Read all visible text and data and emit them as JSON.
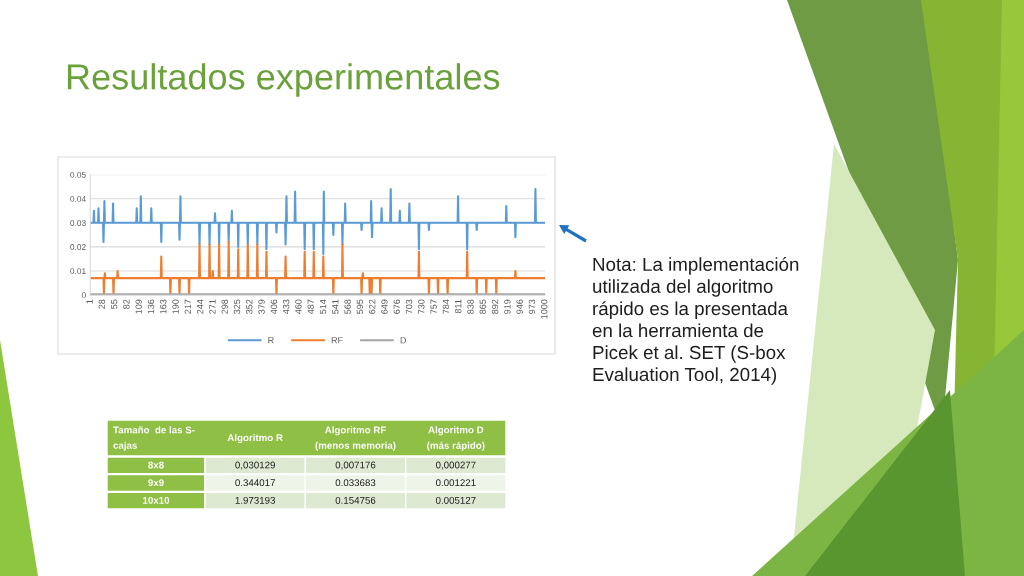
{
  "chart_data": [
    {
      "type": "line",
      "title": "Resultados experimentales",
      "xlim": [
        1,
        1000
      ],
      "xticks": [
        1,
        28,
        55,
        82,
        109,
        136,
        163,
        190,
        217,
        244,
        271,
        298,
        325,
        352,
        379,
        406,
        433,
        460,
        487,
        514,
        541,
        568,
        595,
        622,
        649,
        676,
        703,
        730,
        757,
        784,
        811,
        838,
        865,
        892,
        919,
        946,
        973,
        1000
      ],
      "ylim": [
        0,
        0.05
      ],
      "yticks": [
        0,
        0.01,
        0.02,
        0.03,
        0.04,
        0.05
      ],
      "grid": "y",
      "legend": "bottom",
      "series": [
        {
          "name": "R",
          "color": "#5b9bd5",
          "x": [
            1,
            8,
            9,
            10,
            18,
            19,
            20,
            29,
            30,
            31,
            32,
            33,
            50,
            51,
            52,
            102,
            103,
            104,
            111,
            112,
            113,
            134,
            135,
            136,
            156,
            157,
            158,
            196,
            197,
            198,
            199,
            200,
            240,
            241,
            242,
            262,
            263,
            264,
            274,
            275,
            276,
            283,
            284,
            285,
            304,
            305,
            306,
            311,
            312,
            313,
            325,
            326,
            327,
            346,
            347,
            348,
            367,
            368,
            369,
            387,
            388,
            389,
            409,
            410,
            411,
            429,
            430,
            431,
            432,
            433,
            450,
            451,
            452,
            471,
            472,
            473,
            491,
            492,
            493,
            512,
            513,
            514,
            515,
            534,
            535,
            536,
            554,
            555,
            556,
            560,
            561,
            562,
            596,
            597,
            598,
            617,
            618,
            619,
            620,
            621,
            640,
            641,
            642,
            660,
            661,
            662,
            680,
            681,
            682,
            701,
            702,
            703,
            722,
            723,
            724,
            744,
            745,
            746,
            808,
            809,
            810,
            828,
            829,
            830,
            849,
            850,
            851,
            914,
            915,
            916,
            934,
            935,
            936,
            978,
            979,
            980,
            1000
          ],
          "values": [
            0.03,
            0.03,
            0.035,
            0.03,
            0.03,
            0.036,
            0.03,
            0.03,
            0.022,
            0.03,
            0.039,
            0.03,
            0.03,
            0.038,
            0.03,
            0.03,
            0.036,
            0.03,
            0.03,
            0.041,
            0.03,
            0.03,
            0.036,
            0.03,
            0.03,
            0.022,
            0.03,
            0.03,
            0.023,
            0.03,
            0.041,
            0.03,
            0.03,
            0.021,
            0.03,
            0.03,
            0.021,
            0.03,
            0.03,
            0.034,
            0.03,
            0.03,
            0.021,
            0.03,
            0.03,
            0.022,
            0.03,
            0.03,
            0.035,
            0.03,
            0.03,
            0.02,
            0.03,
            0.03,
            0.021,
            0.03,
            0.03,
            0.021,
            0.03,
            0.03,
            0.019,
            0.03,
            0.03,
            0.026,
            0.03,
            0.03,
            0.021,
            0.03,
            0.041,
            0.03,
            0.03,
            0.043,
            0.03,
            0.03,
            0.019,
            0.03,
            0.03,
            0.019,
            0.03,
            0.03,
            0.017,
            0.043,
            0.03,
            0.03,
            0.025,
            0.03,
            0.03,
            0.021,
            0.03,
            0.03,
            0.038,
            0.03,
            0.03,
            0.027,
            0.03,
            0.03,
            0.039,
            0.03,
            0.024,
            0.03,
            0.03,
            0.036,
            0.03,
            0.03,
            0.044,
            0.03,
            0.03,
            0.035,
            0.03,
            0.03,
            0.038,
            0.03,
            0.03,
            0.019,
            0.03,
            0.03,
            0.027,
            0.03,
            0.03,
            0.041,
            0.03,
            0.03,
            0.019,
            0.03,
            0.03,
            0.027,
            0.03,
            0.03,
            0.037,
            0.03,
            0.03,
            0.024,
            0.03,
            0.03,
            0.044,
            0.03,
            0.03
          ]
        },
        {
          "name": "RF",
          "color": "#ed7d31",
          "x": [
            1,
            30,
            31,
            32,
            33,
            34,
            51,
            52,
            53,
            60,
            61,
            62,
            156,
            157,
            158,
            176,
            177,
            178,
            196,
            197,
            198,
            217,
            218,
            219,
            240,
            241,
            242,
            262,
            263,
            264,
            269,
            270,
            271,
            283,
            284,
            285,
            304,
            305,
            306,
            325,
            326,
            327,
            346,
            347,
            348,
            367,
            368,
            369,
            387,
            388,
            389,
            409,
            410,
            411,
            429,
            430,
            431,
            471,
            472,
            473,
            491,
            492,
            493,
            512,
            513,
            514,
            534,
            535,
            536,
            554,
            555,
            556,
            596,
            597,
            598,
            600,
            601,
            614,
            615,
            616,
            618,
            619,
            620,
            637,
            638,
            639,
            722,
            723,
            724,
            744,
            745,
            746,
            764,
            765,
            766,
            785,
            786,
            787,
            828,
            829,
            830,
            849,
            850,
            851,
            870,
            871,
            872,
            892,
            893,
            894,
            934,
            935,
            936,
            1000
          ],
          "values": [
            0.007,
            0.007,
            0,
            0.007,
            0.009,
            0.007,
            0.007,
            0,
            0.007,
            0.007,
            0.01,
            0.007,
            0.007,
            0.016,
            0.007,
            0.007,
            0,
            0.007,
            0.007,
            0,
            0.007,
            0.007,
            0,
            0.007,
            0.007,
            0.021,
            0.007,
            0.007,
            0.021,
            0.007,
            0.007,
            0.01,
            0.007,
            0.007,
            0.021,
            0.007,
            0.007,
            0.022,
            0.007,
            0.007,
            0.019,
            0.007,
            0.007,
            0.021,
            0.007,
            0.007,
            0.021,
            0.007,
            0.007,
            0.018,
            0.007,
            0.007,
            0,
            0.007,
            0.007,
            0.016,
            0.007,
            0.007,
            0.018,
            0.007,
            0.007,
            0.018,
            0.007,
            0.007,
            0.016,
            0.007,
            0.007,
            0,
            0.007,
            0.007,
            0.021,
            0.007,
            0.007,
            0,
            0.007,
            0.009,
            0.007,
            0.007,
            0,
            0.007,
            0.007,
            0,
            0.007,
            0.007,
            0,
            0.007,
            0.007,
            0.018,
            0.007,
            0.007,
            0,
            0.007,
            0.007,
            0,
            0.007,
            0.007,
            0,
            0.007,
            0.007,
            0.018,
            0.007,
            0.007,
            0,
            0.007,
            0.007,
            0.001,
            0.007,
            0.007,
            0,
            0.007,
            0.007,
            0.01,
            0.007,
            0.007
          ]
        },
        {
          "name": "D",
          "color": "#a5a5a5",
          "x": [
            1,
            1000
          ],
          "values": [
            0.0003,
            0.0003
          ]
        }
      ],
      "annotations": [
        "Nota: La implementación\nutilizada del algoritmo\nrápido es la presentada\nen la herramienta de\nPicek et al. SET (S-box\nEvaluation Tool, 2014)"
      ]
    },
    {
      "type": "other",
      "ylabel": "Tamaño  de las S-\ncajas",
      "categories": [
        "Algoritmo R",
        "Algoritmo RF\n(menos memoria)",
        "Algoritmo D\n(más rápido)"
      ],
      "y_categories": [
        "8x8",
        "9x9",
        "10x10"
      ],
      "cell_labels": [
        [
          "0,030129",
          "0,007176",
          "0,000277"
        ],
        [
          "0.344017",
          "0.033683",
          "0.001221"
        ],
        [
          "1.973193",
          "0.154756",
          "0.005127"
        ]
      ]
    }
  ]
}
